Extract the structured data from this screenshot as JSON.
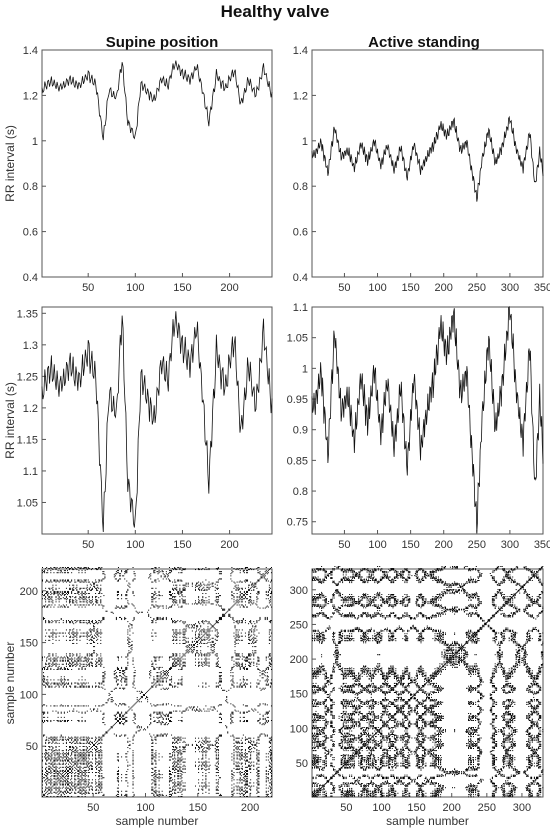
{
  "figure": {
    "title": "Healthy valve",
    "columns": [
      {
        "title": "Supine position"
      },
      {
        "title": "Active standing"
      }
    ]
  },
  "chart_data": [
    {
      "id": "supine-rr-full",
      "type": "line",
      "title": "Supine position",
      "xlabel": "",
      "ylabel": "RR interval (s)",
      "xlim": [
        1,
        245
      ],
      "ylim": [
        0.4,
        1.4
      ],
      "xticks": [
        50,
        100,
        150,
        200
      ],
      "yticks": [
        0.4,
        0.6,
        0.8,
        1,
        1.2,
        1.4
      ],
      "ytick_labels": [
        "0.4",
        "0.6",
        "0.8",
        "1",
        "1.2",
        "1.4"
      ],
      "n_samples": 245,
      "keypoints": [
        [
          1,
          1.22
        ],
        [
          10,
          1.26
        ],
        [
          20,
          1.23
        ],
        [
          30,
          1.27
        ],
        [
          40,
          1.24
        ],
        [
          50,
          1.29
        ],
        [
          58,
          1.25
        ],
        [
          66,
          1.01
        ],
        [
          72,
          1.22
        ],
        [
          80,
          1.19
        ],
        [
          86,
          1.35
        ],
        [
          92,
          1.08
        ],
        [
          100,
          1.01
        ],
        [
          106,
          1.25
        ],
        [
          112,
          1.22
        ],
        [
          120,
          1.18
        ],
        [
          128,
          1.28
        ],
        [
          134,
          1.24
        ],
        [
          142,
          1.34
        ],
        [
          150,
          1.3
        ],
        [
          158,
          1.27
        ],
        [
          165,
          1.33
        ],
        [
          172,
          1.21
        ],
        [
          178,
          1.08
        ],
        [
          186,
          1.29
        ],
        [
          195,
          1.23
        ],
        [
          205,
          1.31
        ],
        [
          212,
          1.16
        ],
        [
          220,
          1.27
        ],
        [
          228,
          1.2
        ],
        [
          236,
          1.32
        ],
        [
          245,
          1.2
        ]
      ]
    },
    {
      "id": "standing-rr-full",
      "type": "line",
      "title": "Active standing",
      "xlabel": "",
      "ylabel": "",
      "xlim": [
        1,
        350
      ],
      "ylim": [
        0.4,
        1.4
      ],
      "xticks": [
        50,
        100,
        150,
        200,
        250,
        300,
        350
      ],
      "yticks": [
        0.4,
        0.6,
        0.8,
        1,
        1.2,
        1.4
      ],
      "ytick_labels": [
        "0.4",
        "0.6",
        "0.8",
        "1",
        "1.2",
        "1.4"
      ],
      "n_samples": 350,
      "keypoints": [
        [
          1,
          0.93
        ],
        [
          15,
          0.99
        ],
        [
          25,
          0.86
        ],
        [
          35,
          1.06
        ],
        [
          45,
          0.93
        ],
        [
          55,
          0.96
        ],
        [
          65,
          0.88
        ],
        [
          75,
          0.99
        ],
        [
          85,
          0.91
        ],
        [
          95,
          1.0
        ],
        [
          105,
          0.89
        ],
        [
          115,
          0.98
        ],
        [
          125,
          0.87
        ],
        [
          135,
          0.97
        ],
        [
          145,
          0.84
        ],
        [
          155,
          0.99
        ],
        [
          165,
          0.87
        ],
        [
          175,
          0.93
        ],
        [
          185,
          0.98
        ],
        [
          195,
          1.07
        ],
        [
          205,
          1.02
        ],
        [
          215,
          1.09
        ],
        [
          225,
          0.96
        ],
        [
          235,
          0.99
        ],
        [
          243,
          0.86
        ],
        [
          250,
          0.74
        ],
        [
          258,
          0.92
        ],
        [
          268,
          1.05
        ],
        [
          278,
          0.9
        ],
        [
          288,
          0.97
        ],
        [
          300,
          1.1
        ],
        [
          310,
          0.96
        ],
        [
          320,
          0.88
        ],
        [
          330,
          1.04
        ],
        [
          338,
          0.8
        ],
        [
          345,
          0.95
        ],
        [
          350,
          0.86
        ]
      ]
    },
    {
      "id": "supine-rr-zoom",
      "type": "line",
      "xlabel": "",
      "ylabel": "RR interval (s)",
      "xlim": [
        1,
        245
      ],
      "ylim": [
        1.0,
        1.36
      ],
      "xticks": [
        50,
        100,
        150,
        200
      ],
      "yticks": [
        1.05,
        1.1,
        1.15,
        1.2,
        1.25,
        1.3,
        1.35
      ],
      "ytick_labels": [
        "1.05",
        "1.1",
        "1.15",
        "1.2",
        "1.25",
        "1.3",
        "1.35"
      ],
      "source": "supine-rr-full"
    },
    {
      "id": "standing-rr-zoom",
      "type": "line",
      "xlabel": "",
      "ylabel": "",
      "xlim": [
        1,
        350
      ],
      "ylim": [
        0.73,
        1.1
      ],
      "xticks": [
        50,
        100,
        150,
        200,
        250,
        300,
        350
      ],
      "yticks": [
        0.75,
        0.8,
        0.85,
        0.9,
        0.95,
        1,
        1.05,
        1.1
      ],
      "ytick_labels": [
        "0.75",
        "0.8",
        "0.85",
        "0.9",
        "0.95",
        "1",
        "1.05",
        "1.1"
      ],
      "source": "standing-rr-full"
    },
    {
      "id": "supine-recurrence",
      "type": "scatter",
      "xlabel": "sample number",
      "ylabel": "sample number",
      "xlim": [
        1,
        221
      ],
      "ylim": [
        1,
        221
      ],
      "xticks": [
        50,
        100,
        150,
        200
      ],
      "yticks": [
        50,
        100,
        150,
        200
      ],
      "n_samples": 221,
      "source": "supine-rr-full",
      "threshold": 0.012
    },
    {
      "id": "standing-recurrence",
      "type": "scatter",
      "xlabel": "sample number",
      "ylabel": "",
      "xlim": [
        1,
        330
      ],
      "ylim": [
        1,
        330
      ],
      "xticks": [
        50,
        100,
        150,
        200,
        250,
        300
      ],
      "yticks": [
        50,
        100,
        150,
        200,
        250,
        300
      ],
      "n_samples": 330,
      "source": "standing-rr-full",
      "threshold": 0.012
    }
  ]
}
